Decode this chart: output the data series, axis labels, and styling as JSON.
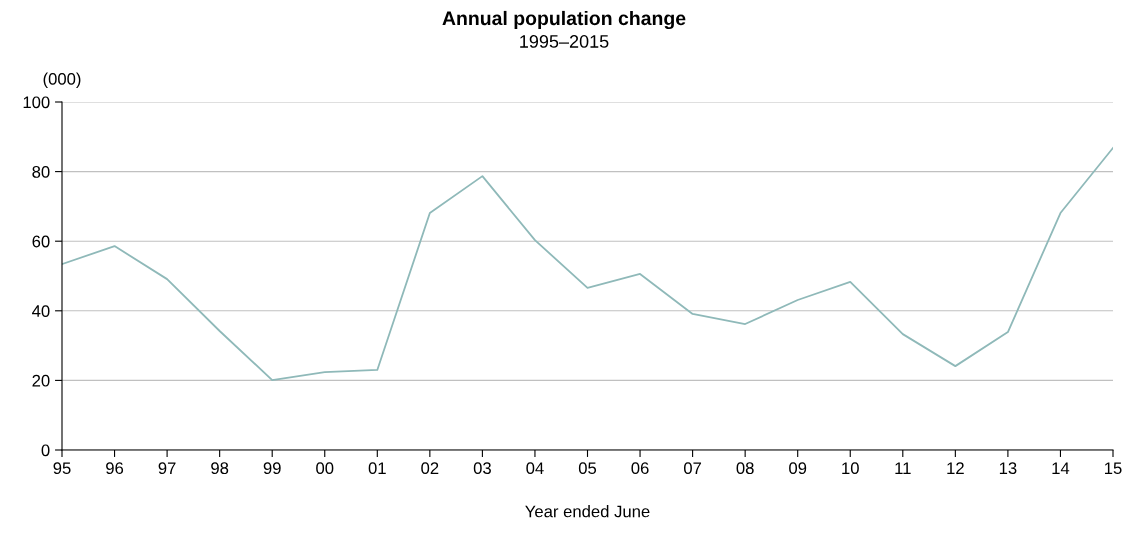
{
  "chart_data": {
    "type": "line",
    "title": "Annual population change",
    "subtitle": "1995–2015",
    "ylabel": "(000)",
    "xlabel": "Year ended June",
    "categories": [
      "95",
      "96",
      "97",
      "98",
      "99",
      "00",
      "01",
      "02",
      "03",
      "04",
      "05",
      "06",
      "07",
      "08",
      "09",
      "10",
      "11",
      "12",
      "13",
      "14",
      "15"
    ],
    "series": [
      {
        "color": "#8fb9b9",
        "values": [
          53.4,
          58.6,
          49.1,
          34.2,
          20.1,
          22.4,
          23.0,
          68.1,
          78.7,
          60.3,
          46.6,
          50.6,
          39.1,
          36.2,
          43.1,
          48.3,
          33.3,
          24.1,
          33.9,
          68.1,
          86.8
        ]
      }
    ],
    "ylim": [
      0,
      100
    ],
    "yticks": [
      0,
      20,
      40,
      60,
      80,
      100
    ],
    "grid": "y",
    "legend": false,
    "marker": "none",
    "line_style": "solid"
  }
}
